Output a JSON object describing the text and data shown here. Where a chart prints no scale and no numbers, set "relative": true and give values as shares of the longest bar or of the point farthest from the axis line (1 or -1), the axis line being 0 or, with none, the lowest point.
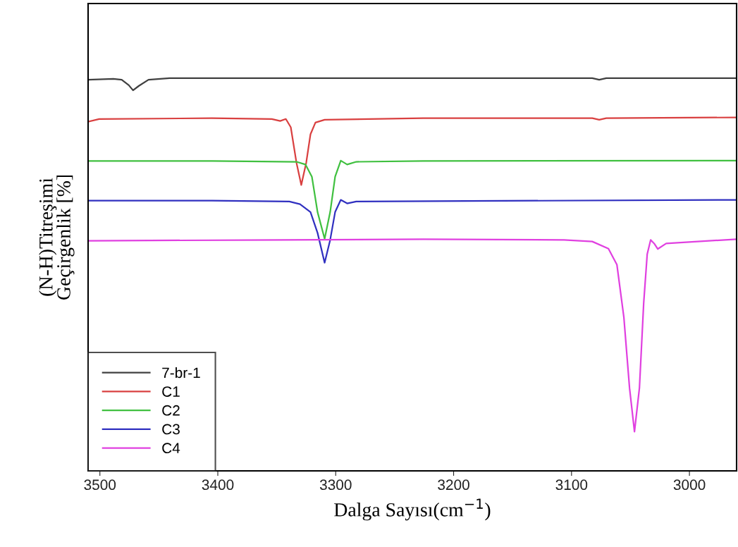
{
  "chart_data": {
    "type": "line",
    "relative": true,
    "xlabel": "Dalga Sayısı(cm$^{−1}$)",
    "ylabel": "(N-H)Titreşimi\nGeçirgenlik [%]",
    "xlim": [
      3510,
      2960
    ],
    "xticks": [
      3500,
      3400,
      3300,
      3200,
      3100,
      3000
    ],
    "tick_labels": "x",
    "grid": false,
    "legend": "bottom left",
    "marker": "none",
    "line_style": "solid",
    "series": [
      {
        "name": "7-br-1",
        "color": "#404040",
        "x": [
          3510,
          3488.6,
          3481.5,
          3475.5,
          3471.9,
          3467.1,
          3458.8,
          3440.9,
          3225.8,
          3082.4,
          3076.5,
          3070.5,
          2960
        ],
        "values": [
          0.996,
          0.998,
          0.996,
          0.982,
          0.969,
          0.98,
          0.996,
          1,
          1,
          1,
          0.996,
          1,
          1
        ]
      },
      {
        "name": "C1",
        "color": "#d94040",
        "x": [
          3510,
          3500.6,
          3405,
          3354.2,
          3347.1,
          3342.3,
          3338.1,
          3333.3,
          3329.2,
          3325,
          3321.4,
          3317.2,
          3309.4,
          3225.8,
          3082.4,
          3076.5,
          3070.5,
          2960
        ],
        "values": [
          0.889,
          0.896,
          0.898,
          0.896,
          0.891,
          0.896,
          0.875,
          0.785,
          0.728,
          0.785,
          0.857,
          0.887,
          0.894,
          0.898,
          0.898,
          0.894,
          0.898,
          0.9
        ]
      },
      {
        "name": "C2",
        "color": "#40c040",
        "x": [
          3510,
          3405,
          3333.3,
          3325.6,
          3320.2,
          3315.4,
          3309.4,
          3304.7,
          3300.5,
          3295.7,
          3290.3,
          3282.6,
          3225.8,
          2960
        ],
        "values": [
          0.789,
          0.789,
          0.787,
          0.78,
          0.749,
          0.659,
          0.591,
          0.659,
          0.749,
          0.79,
          0.78,
          0.787,
          0.789,
          0.79
        ]
      },
      {
        "name": "C3",
        "color": "#3030c0",
        "x": [
          3510,
          3405,
          3339.3,
          3330.3,
          3321.4,
          3315.4,
          3309.4,
          3304.7,
          3300.5,
          3295.7,
          3290.3,
          3282.6,
          2960
        ],
        "values": [
          0.688,
          0.688,
          0.686,
          0.679,
          0.659,
          0.606,
          0.53,
          0.588,
          0.659,
          0.69,
          0.681,
          0.686,
          0.69
        ]
      },
      {
        "name": "C4",
        "color": "#e040e0",
        "x": [
          3510,
          3345.3,
          3225.8,
          3106.3,
          3082.4,
          3068.7,
          3061.5,
          3055.6,
          3050.8,
          3046.6,
          3042.4,
          3038.8,
          3035.8,
          3032.9,
          3029.9,
          3026.9,
          3019.7,
          2960
        ],
        "values": [
          0.586,
          0.588,
          0.59,
          0.588,
          0.584,
          0.566,
          0.525,
          0.391,
          0.211,
          0.1,
          0.211,
          0.427,
          0.552,
          0.588,
          0.579,
          0.565,
          0.579,
          0.59
        ]
      }
    ]
  }
}
